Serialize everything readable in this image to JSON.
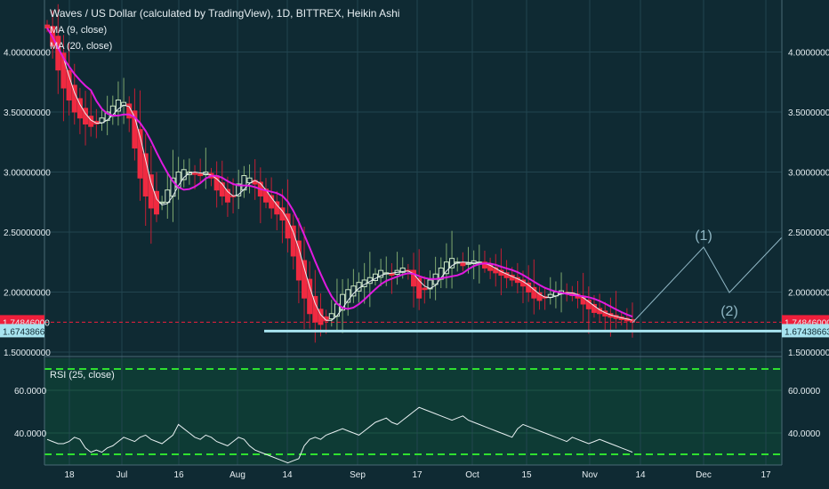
{
  "chart_data": [
    {
      "type": "candlestick",
      "title": "Waves / US Dollar (calculated by TradingView), 1D, BITTREX, Heikin Ashi",
      "legend": [
        "MA (9, close)",
        "MA (20, close)"
      ],
      "ylim": [
        1.47,
        4.3
      ],
      "y_ticks": [
        "4.00000000",
        "3.50000000",
        "3.00000000",
        "2.50000000",
        "2.00000000",
        "1.50000000"
      ],
      "y_tick_values": [
        4.0,
        3.5,
        3.0,
        2.5,
        2.0,
        1.5
      ],
      "x_tick_labels": [
        "18",
        "Jul",
        "16",
        "Aug",
        "14",
        "Sep",
        "17",
        "Oct",
        "15",
        "Nov",
        "14",
        "Dec",
        "17"
      ],
      "last_price": {
        "value": 1.74846,
        "label": "1.74846000",
        "color": "#ef1f3b"
      },
      "support": {
        "value": 1.67438663,
        "label": "1.67438663",
        "color": "#a8e4f0"
      },
      "closes": [
        4.2,
        4.05,
        3.85,
        3.7,
        3.6,
        3.5,
        3.45,
        3.4,
        3.38,
        3.4,
        3.45,
        3.5,
        3.55,
        3.6,
        3.58,
        3.45,
        3.2,
        2.95,
        2.8,
        2.7,
        2.65,
        2.75,
        2.85,
        2.95,
        3.0,
        3.02,
        3.0,
        2.98,
        2.97,
        3.0,
        2.95,
        2.85,
        2.8,
        2.75,
        2.8,
        2.9,
        2.97,
        2.95,
        2.9,
        2.8,
        2.75,
        2.7,
        2.65,
        2.6,
        2.45,
        2.3,
        2.1,
        1.95,
        1.82,
        1.75,
        1.73,
        1.76,
        1.82,
        1.9,
        1.98,
        2.02,
        2.05,
        2.08,
        2.1,
        2.12,
        2.15,
        2.18,
        2.16,
        2.14,
        2.18,
        2.2,
        2.18,
        2.05,
        1.95,
        2.02,
        2.1,
        2.15,
        2.2,
        2.25,
        2.28,
        2.25,
        2.22,
        2.24,
        2.26,
        2.25,
        2.2,
        2.18,
        2.16,
        2.14,
        2.12,
        2.1,
        2.08,
        2.05,
        2.0,
        1.95,
        1.93,
        1.95,
        1.98,
        2.0,
        2.01,
        1.99,
        1.97,
        1.95,
        1.9,
        1.86,
        1.83,
        1.82,
        1.8,
        1.79,
        1.78,
        1.77,
        1.76,
        1.75
      ],
      "series": [
        {
          "name": "MA (9, close)",
          "color": "#e8f0f2"
        },
        {
          "name": "MA (20, close)",
          "color": "#e01adf"
        }
      ],
      "projection": {
        "labels": [
          "(1)",
          "(2)"
        ],
        "color": "#8fb6c4"
      }
    },
    {
      "type": "line",
      "title": "RSI (25, close)",
      "ylim": [
        25,
        75
      ],
      "y_ticks": [
        "60.0000",
        "40.0000"
      ],
      "y_tick_values": [
        60,
        40
      ],
      "bands": [
        70,
        30
      ],
      "series": [
        {
          "name": "RSI (25, close)",
          "color": "#e8f0f2",
          "values": [
            37,
            36,
            35,
            35,
            36,
            38,
            37,
            33,
            31,
            32,
            31,
            33,
            34,
            36,
            38,
            37,
            36,
            38,
            39,
            37,
            36,
            35,
            37,
            39,
            44,
            42,
            40,
            38,
            37,
            39,
            38,
            36,
            35,
            34,
            36,
            38,
            37,
            34,
            32,
            31,
            30,
            29,
            28,
            27,
            26,
            27,
            28,
            34,
            37,
            38,
            37,
            39,
            40,
            41,
            42,
            41,
            40,
            39,
            41,
            43,
            45,
            46,
            47,
            45,
            44,
            46,
            48,
            50,
            52,
            51,
            50,
            49,
            48,
            47,
            46,
            47,
            48,
            46,
            45,
            44,
            43,
            42,
            41,
            40,
            39,
            38,
            42,
            44,
            43,
            42,
            41,
            40,
            39,
            38,
            37,
            36,
            38,
            37,
            36,
            35,
            36,
            37,
            36,
            35,
            34,
            33,
            32,
            31
          ]
        }
      ]
    }
  ]
}
